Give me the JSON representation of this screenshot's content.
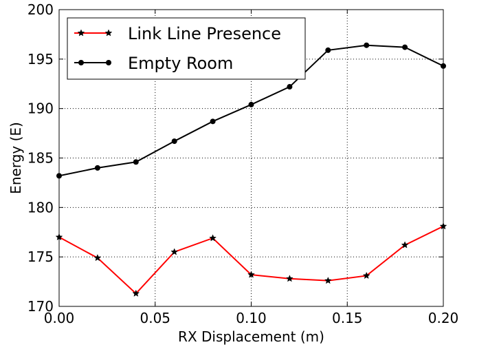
{
  "chart_data": {
    "type": "line",
    "xlabel": "RX Displacement (m)",
    "ylabel": "Energy (E)",
    "xlim": [
      0.0,
      0.2
    ],
    "ylim": [
      170,
      200
    ],
    "x_ticks": [
      0.0,
      0.05,
      0.1,
      0.15,
      0.2
    ],
    "x_tick_labels": [
      "0.00",
      "0.05",
      "0.10",
      "0.15",
      "0.20"
    ],
    "y_ticks": [
      170,
      175,
      180,
      185,
      190,
      195,
      200
    ],
    "y_tick_labels": [
      "170",
      "175",
      "180",
      "185",
      "190",
      "195",
      "200"
    ],
    "grid": true,
    "grid_style": "dotted",
    "legend_position": "top-left",
    "x": [
      0.0,
      0.02,
      0.04,
      0.06,
      0.08,
      0.1,
      0.12,
      0.14,
      0.16,
      0.18,
      0.2
    ],
    "series": [
      {
        "name": "Link Line Presence",
        "color": "#ff0000",
        "marker": "star",
        "values": [
          177.0,
          174.9,
          171.3,
          175.5,
          176.9,
          173.2,
          172.8,
          172.6,
          173.1,
          176.2,
          178.1
        ]
      },
      {
        "name": "Empty Room",
        "color": "#000000",
        "marker": "circle",
        "values": [
          183.2,
          184.0,
          184.6,
          186.7,
          188.7,
          190.4,
          192.2,
          195.9,
          196.4,
          196.2,
          194.3
        ]
      }
    ]
  }
}
